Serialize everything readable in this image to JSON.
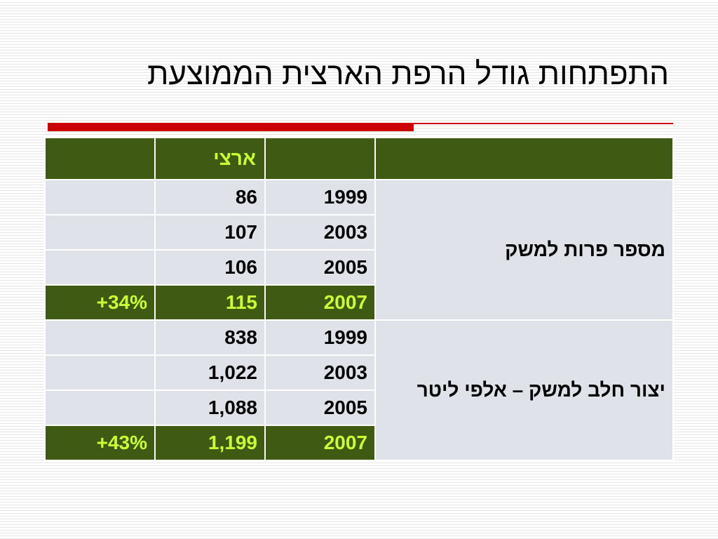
{
  "title": "התפתחות גודל הרפת הארצית הממוצעת",
  "table": {
    "header": [
      "",
      "ארצי",
      "",
      ""
    ],
    "groups": [
      {
        "metric": "מספר פרות למשק",
        "rows": [
          {
            "change": "",
            "national": "86",
            "year": "1999"
          },
          {
            "change": "",
            "national": "107",
            "year": "2003"
          },
          {
            "change": "",
            "national": "106",
            "year": "2005"
          },
          {
            "change": "+34%",
            "national": "115",
            "year": "2007"
          }
        ]
      },
      {
        "metric": "יצור חלב למשק – אלפי ליטר",
        "rows": [
          {
            "change": "",
            "national": "838",
            "year": "1999"
          },
          {
            "change": "",
            "national": "1,022",
            "year": "2003"
          },
          {
            "change": "",
            "national": "1,088",
            "year": "2005"
          },
          {
            "change": "+43%",
            "national": "1,199",
            "year": "2007"
          }
        ]
      }
    ]
  },
  "colors": {
    "header_bg": "#3f5a12",
    "highlight_text": "#ccff33",
    "cell_bg": "#dfe3e9",
    "accent_rule": "#cc0000"
  }
}
